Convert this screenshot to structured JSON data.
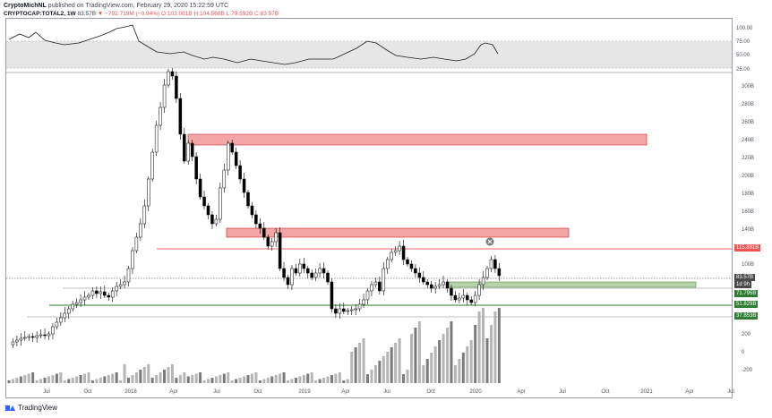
{
  "header": {
    "author": "CryptoMichNL",
    "published": "published on TradingView.com, February 29, 2020 15:22:59 UTC",
    "symbol": "CRYPTOCAP:TOTAL2, 1W",
    "last": "83.57B",
    "change": "▼ −792.719M (−0.94%)",
    "ohlc": "O:103.081B H:104.568B L:79.592B C:83.57B"
  },
  "rsi_axis": [
    "100.00",
    "75.00",
    "50.00",
    "25.00"
  ],
  "price_axis": [
    "300B",
    "280B",
    "260B",
    "240B",
    "220B",
    "200B",
    "180B",
    "160B",
    "140B",
    "120B",
    "100B",
    "200",
    "0",
    "-200"
  ],
  "time_axis": [
    "Jul",
    "Oct",
    "2018",
    "Apr",
    "Jul",
    "Oct",
    "2019",
    "Apr",
    "Jul",
    "Oct",
    "2020",
    "Apr",
    "Jul",
    "Oct",
    "2021",
    "Apr",
    "Jul"
  ],
  "price_tags": [
    {
      "label": "115.891B",
      "color": "#ef5350"
    },
    {
      "label": "83.57B",
      "color": "#4a4a4a"
    },
    {
      "label": "1d 9h",
      "color": "#4a4a4a"
    },
    {
      "label": "71.795B",
      "color": "#2e7d32"
    },
    {
      "label": "51.829B",
      "color": "#2e7d32"
    },
    {
      "label": "37.853B",
      "color": "#2e7d32"
    }
  ],
  "footer": {
    "brand": "TradingView"
  },
  "colors": {
    "resistance_zone": "#f4a6a6",
    "support_zone": "#b7d3ad",
    "up_candle": "#ffffff",
    "down_candle": "#000000",
    "resistance_line": "#e53935",
    "support_line": "#2e7d32"
  }
}
